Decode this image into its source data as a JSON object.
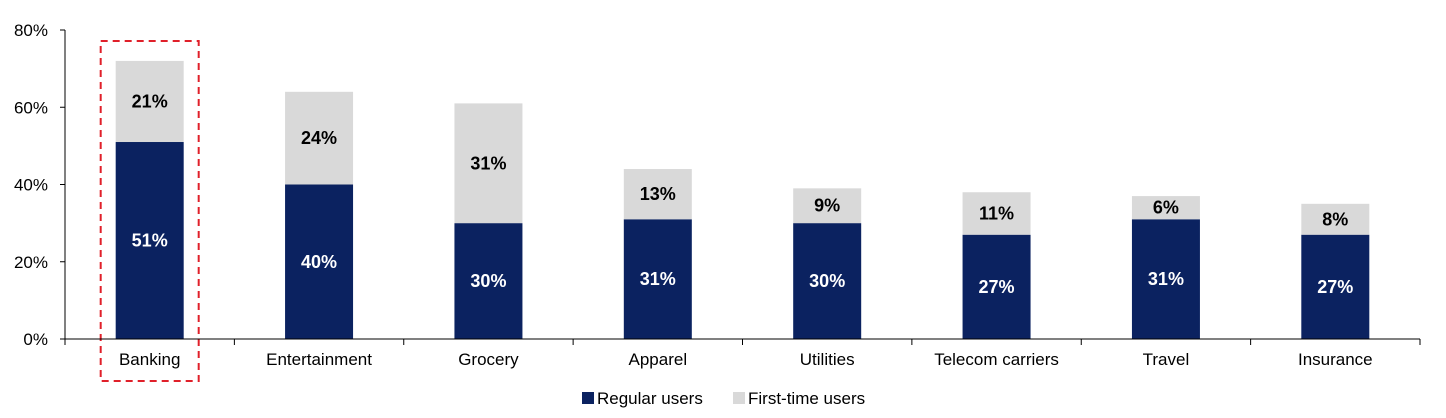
{
  "chart_data": {
    "type": "bar",
    "stacked": true,
    "categories": [
      "Banking",
      "Entertainment",
      "Grocery",
      "Apparel",
      "Utilities",
      "Telecom carriers",
      "Travel",
      "Insurance"
    ],
    "series": [
      {
        "name": "Regular users",
        "values": [
          51,
          40,
          30,
          31,
          30,
          27,
          31,
          27
        ],
        "labels": [
          "51%",
          "40%",
          "30%",
          "31%",
          "30%",
          "27%",
          "31%",
          "27%"
        ]
      },
      {
        "name": "First-time users",
        "values": [
          21,
          24,
          31,
          13,
          9,
          11,
          6,
          8
        ],
        "labels": [
          "21%",
          "24%",
          "31%",
          "13%",
          "9%",
          "11%",
          "6%",
          "8%"
        ]
      }
    ],
    "ylim": [
      0,
      80
    ],
    "yticks": [
      0,
      20,
      40,
      60,
      80
    ],
    "ytick_labels": [
      "0%",
      "20%",
      "40%",
      "60%",
      "80%"
    ],
    "legend_position": "bottom-center",
    "highlight_category": "Banking",
    "colors": {
      "regular": "#0b2260",
      "first_time": "#d9d9d9",
      "highlight_border": "#e0202a",
      "axis": "#000000"
    }
  }
}
